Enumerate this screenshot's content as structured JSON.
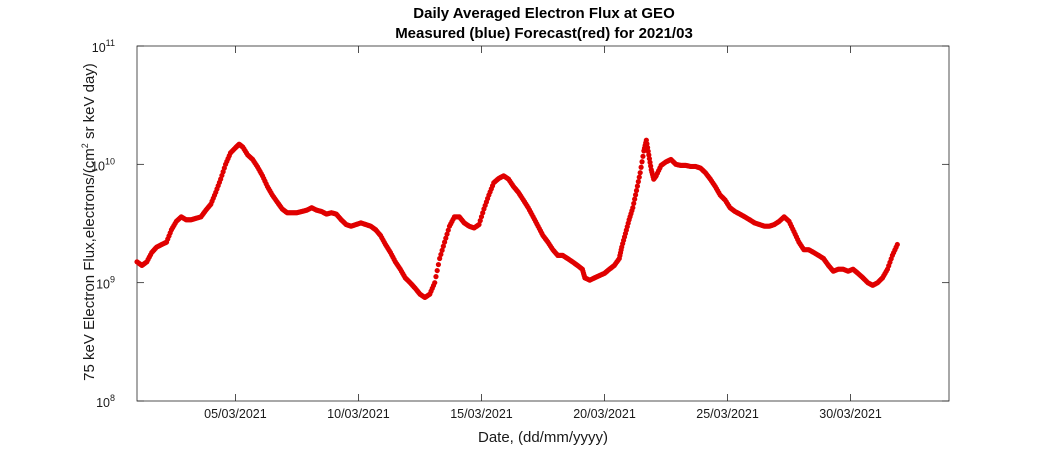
{
  "chart_data": {
    "type": "scatter",
    "title": "Daily Averaged Electron Flux at GEO",
    "subtitle": "Measured (blue) Forecast(red) for 2021/03",
    "xlabel": "Date, (dd/mm/yyyy)",
    "ylabel": {
      "main": "75 keV Electron Flux,electrons/(cm",
      "sup": "2",
      "tail": " sr keV day)"
    },
    "x_unit": "day of March 2021",
    "xlim": [
      1,
      34
    ],
    "ylim": [
      100000000,
      100000000000
    ],
    "y_scale": "log",
    "x_ticks": [
      {
        "value": 5,
        "label": "05/03/2021"
      },
      {
        "value": 10,
        "label": "10/03/2021"
      },
      {
        "value": 15,
        "label": "15/03/2021"
      },
      {
        "value": 20,
        "label": "20/03/2021"
      },
      {
        "value": 25,
        "label": "25/03/2021"
      },
      {
        "value": 30,
        "label": "30/03/2021"
      }
    ],
    "y_ticks": [
      {
        "value": 100000000,
        "base": "10",
        "exp": "8"
      },
      {
        "value": 1000000000,
        "base": "10",
        "exp": "9"
      },
      {
        "value": 10000000000,
        "base": "10",
        "exp": "10"
      },
      {
        "value": 100000000000,
        "base": "10",
        "exp": "11"
      }
    ],
    "grid": false,
    "series": [
      {
        "color": "#e00000",
        "marker": "filled-circle",
        "points": [
          [
            1.0,
            1500000000.0
          ],
          [
            1.2,
            1400000000.0
          ],
          [
            1.4,
            1500000000.0
          ],
          [
            1.6,
            1800000000.0
          ],
          [
            1.8,
            2000000000.0
          ],
          [
            2.0,
            2100000000.0
          ],
          [
            2.2,
            2200000000.0
          ],
          [
            2.4,
            2800000000.0
          ],
          [
            2.6,
            3300000000.0
          ],
          [
            2.8,
            3600000000.0
          ],
          [
            3.0,
            3400000000.0
          ],
          [
            3.2,
            3400000000.0
          ],
          [
            3.4,
            3500000000.0
          ],
          [
            3.6,
            3600000000.0
          ],
          [
            3.8,
            4100000000.0
          ],
          [
            4.0,
            4600000000.0
          ],
          [
            4.2,
            5800000000.0
          ],
          [
            4.4,
            7500000000.0
          ],
          [
            4.6,
            10000000000.0
          ],
          [
            4.8,
            12500000000.0
          ],
          [
            5.0,
            13800000000.0
          ],
          [
            5.15,
            14800000000.0
          ],
          [
            5.3,
            14000000000.0
          ],
          [
            5.5,
            12000000000.0
          ],
          [
            5.7,
            11000000000.0
          ],
          [
            5.9,
            9500000000.0
          ],
          [
            6.1,
            8000000000.0
          ],
          [
            6.3,
            6500000000.0
          ],
          [
            6.5,
            5500000000.0
          ],
          [
            6.7,
            4800000000.0
          ],
          [
            6.9,
            4200000000.0
          ],
          [
            7.1,
            3900000000.0
          ],
          [
            7.3,
            3900000000.0
          ],
          [
            7.5,
            3900000000.0
          ],
          [
            7.7,
            4000000000.0
          ],
          [
            7.9,
            4100000000.0
          ],
          [
            8.1,
            4300000000.0
          ],
          [
            8.3,
            4100000000.0
          ],
          [
            8.5,
            4000000000.0
          ],
          [
            8.7,
            3800000000.0
          ],
          [
            8.9,
            3900000000.0
          ],
          [
            9.1,
            3800000000.0
          ],
          [
            9.3,
            3400000000.0
          ],
          [
            9.5,
            3100000000.0
          ],
          [
            9.7,
            3000000000.0
          ],
          [
            9.9,
            3100000000.0
          ],
          [
            10.1,
            3200000000.0
          ],
          [
            10.3,
            3100000000.0
          ],
          [
            10.5,
            3000000000.0
          ],
          [
            10.7,
            2800000000.0
          ],
          [
            10.9,
            2500000000.0
          ],
          [
            11.1,
            2100000000.0
          ],
          [
            11.3,
            1800000000.0
          ],
          [
            11.5,
            1500000000.0
          ],
          [
            11.7,
            1300000000.0
          ],
          [
            11.9,
            1100000000.0
          ],
          [
            12.1,
            1000000000.0
          ],
          [
            12.3,
            900000000.0
          ],
          [
            12.5,
            800000000.0
          ],
          [
            12.7,
            750000000.0
          ],
          [
            12.9,
            800000000.0
          ],
          [
            13.1,
            1000000000.0
          ],
          [
            13.3,
            1600000000.0
          ],
          [
            13.5,
            2200000000.0
          ],
          [
            13.7,
            3000000000.0
          ],
          [
            13.9,
            3600000000.0
          ],
          [
            14.1,
            3600000000.0
          ],
          [
            14.3,
            3200000000.0
          ],
          [
            14.5,
            3000000000.0
          ],
          [
            14.7,
            2900000000.0
          ],
          [
            14.9,
            3100000000.0
          ],
          [
            15.1,
            4200000000.0
          ],
          [
            15.3,
            5500000000.0
          ],
          [
            15.5,
            7000000000.0
          ],
          [
            15.7,
            7600000000.0
          ],
          [
            15.9,
            8000000000.0
          ],
          [
            16.1,
            7500000000.0
          ],
          [
            16.3,
            6500000000.0
          ],
          [
            16.5,
            5800000000.0
          ],
          [
            16.7,
            5000000000.0
          ],
          [
            16.9,
            4300000000.0
          ],
          [
            17.1,
            3600000000.0
          ],
          [
            17.3,
            3000000000.0
          ],
          [
            17.5,
            2500000000.0
          ],
          [
            17.7,
            2200000000.0
          ],
          [
            17.9,
            1900000000.0
          ],
          [
            18.1,
            1700000000.0
          ],
          [
            18.3,
            1700000000.0
          ],
          [
            18.5,
            1600000000.0
          ],
          [
            18.7,
            1500000000.0
          ],
          [
            18.9,
            1400000000.0
          ],
          [
            19.1,
            1300000000.0
          ],
          [
            19.2,
            1100000000.0
          ],
          [
            19.4,
            1050000000.0
          ],
          [
            19.6,
            1100000000.0
          ],
          [
            19.8,
            1150000000.0
          ],
          [
            20.0,
            1200000000.0
          ],
          [
            20.2,
            1300000000.0
          ],
          [
            20.4,
            1400000000.0
          ],
          [
            20.6,
            1600000000.0
          ],
          [
            20.7,
            2000000000.0
          ],
          [
            20.85,
            2600000000.0
          ],
          [
            21.0,
            3400000000.0
          ],
          [
            21.15,
            4300000000.0
          ],
          [
            21.3,
            6000000000.0
          ],
          [
            21.45,
            8500000000.0
          ],
          [
            21.6,
            13000000000.0
          ],
          [
            21.7,
            16000000000.0
          ],
          [
            21.8,
            12000000000.0
          ],
          [
            21.9,
            9000000000.0
          ],
          [
            22.0,
            7500000000.0
          ],
          [
            22.1,
            8000000000.0
          ],
          [
            22.3,
            9800000000.0
          ],
          [
            22.5,
            10500000000.0
          ],
          [
            22.7,
            11000000000.0
          ],
          [
            22.9,
            10000000000.0
          ],
          [
            23.1,
            9800000000.0
          ],
          [
            23.3,
            9800000000.0
          ],
          [
            23.5,
            9600000000.0
          ],
          [
            23.7,
            9600000000.0
          ],
          [
            23.9,
            9300000000.0
          ],
          [
            24.1,
            8500000000.0
          ],
          [
            24.3,
            7500000000.0
          ],
          [
            24.5,
            6500000000.0
          ],
          [
            24.7,
            5500000000.0
          ],
          [
            24.9,
            5000000000.0
          ],
          [
            25.1,
            4300000000.0
          ],
          [
            25.3,
            4000000000.0
          ],
          [
            25.5,
            3800000000.0
          ],
          [
            25.7,
            3600000000.0
          ],
          [
            25.9,
            3400000000.0
          ],
          [
            26.1,
            3200000000.0
          ],
          [
            26.3,
            3100000000.0
          ],
          [
            26.5,
            3000000000.0
          ],
          [
            26.7,
            3000000000.0
          ],
          [
            26.9,
            3100000000.0
          ],
          [
            27.1,
            3300000000.0
          ],
          [
            27.3,
            3600000000.0
          ],
          [
            27.5,
            3300000000.0
          ],
          [
            27.7,
            2700000000.0
          ],
          [
            27.9,
            2200000000.0
          ],
          [
            28.1,
            1900000000.0
          ],
          [
            28.3,
            1900000000.0
          ],
          [
            28.5,
            1800000000.0
          ],
          [
            28.7,
            1700000000.0
          ],
          [
            28.9,
            1600000000.0
          ],
          [
            29.1,
            1400000000.0
          ],
          [
            29.3,
            1250000000.0
          ],
          [
            29.5,
            1300000000.0
          ],
          [
            29.7,
            1300000000.0
          ],
          [
            29.9,
            1250000000.0
          ],
          [
            30.1,
            1300000000.0
          ],
          [
            30.3,
            1200000000.0
          ],
          [
            30.5,
            1100000000.0
          ],
          [
            30.7,
            1000000000.0
          ],
          [
            30.9,
            950000000.0
          ],
          [
            31.1,
            1000000000.0
          ],
          [
            31.3,
            1100000000.0
          ],
          [
            31.5,
            1300000000.0
          ],
          [
            31.7,
            1700000000.0
          ],
          [
            31.9,
            2100000000.0
          ]
        ]
      }
    ]
  }
}
